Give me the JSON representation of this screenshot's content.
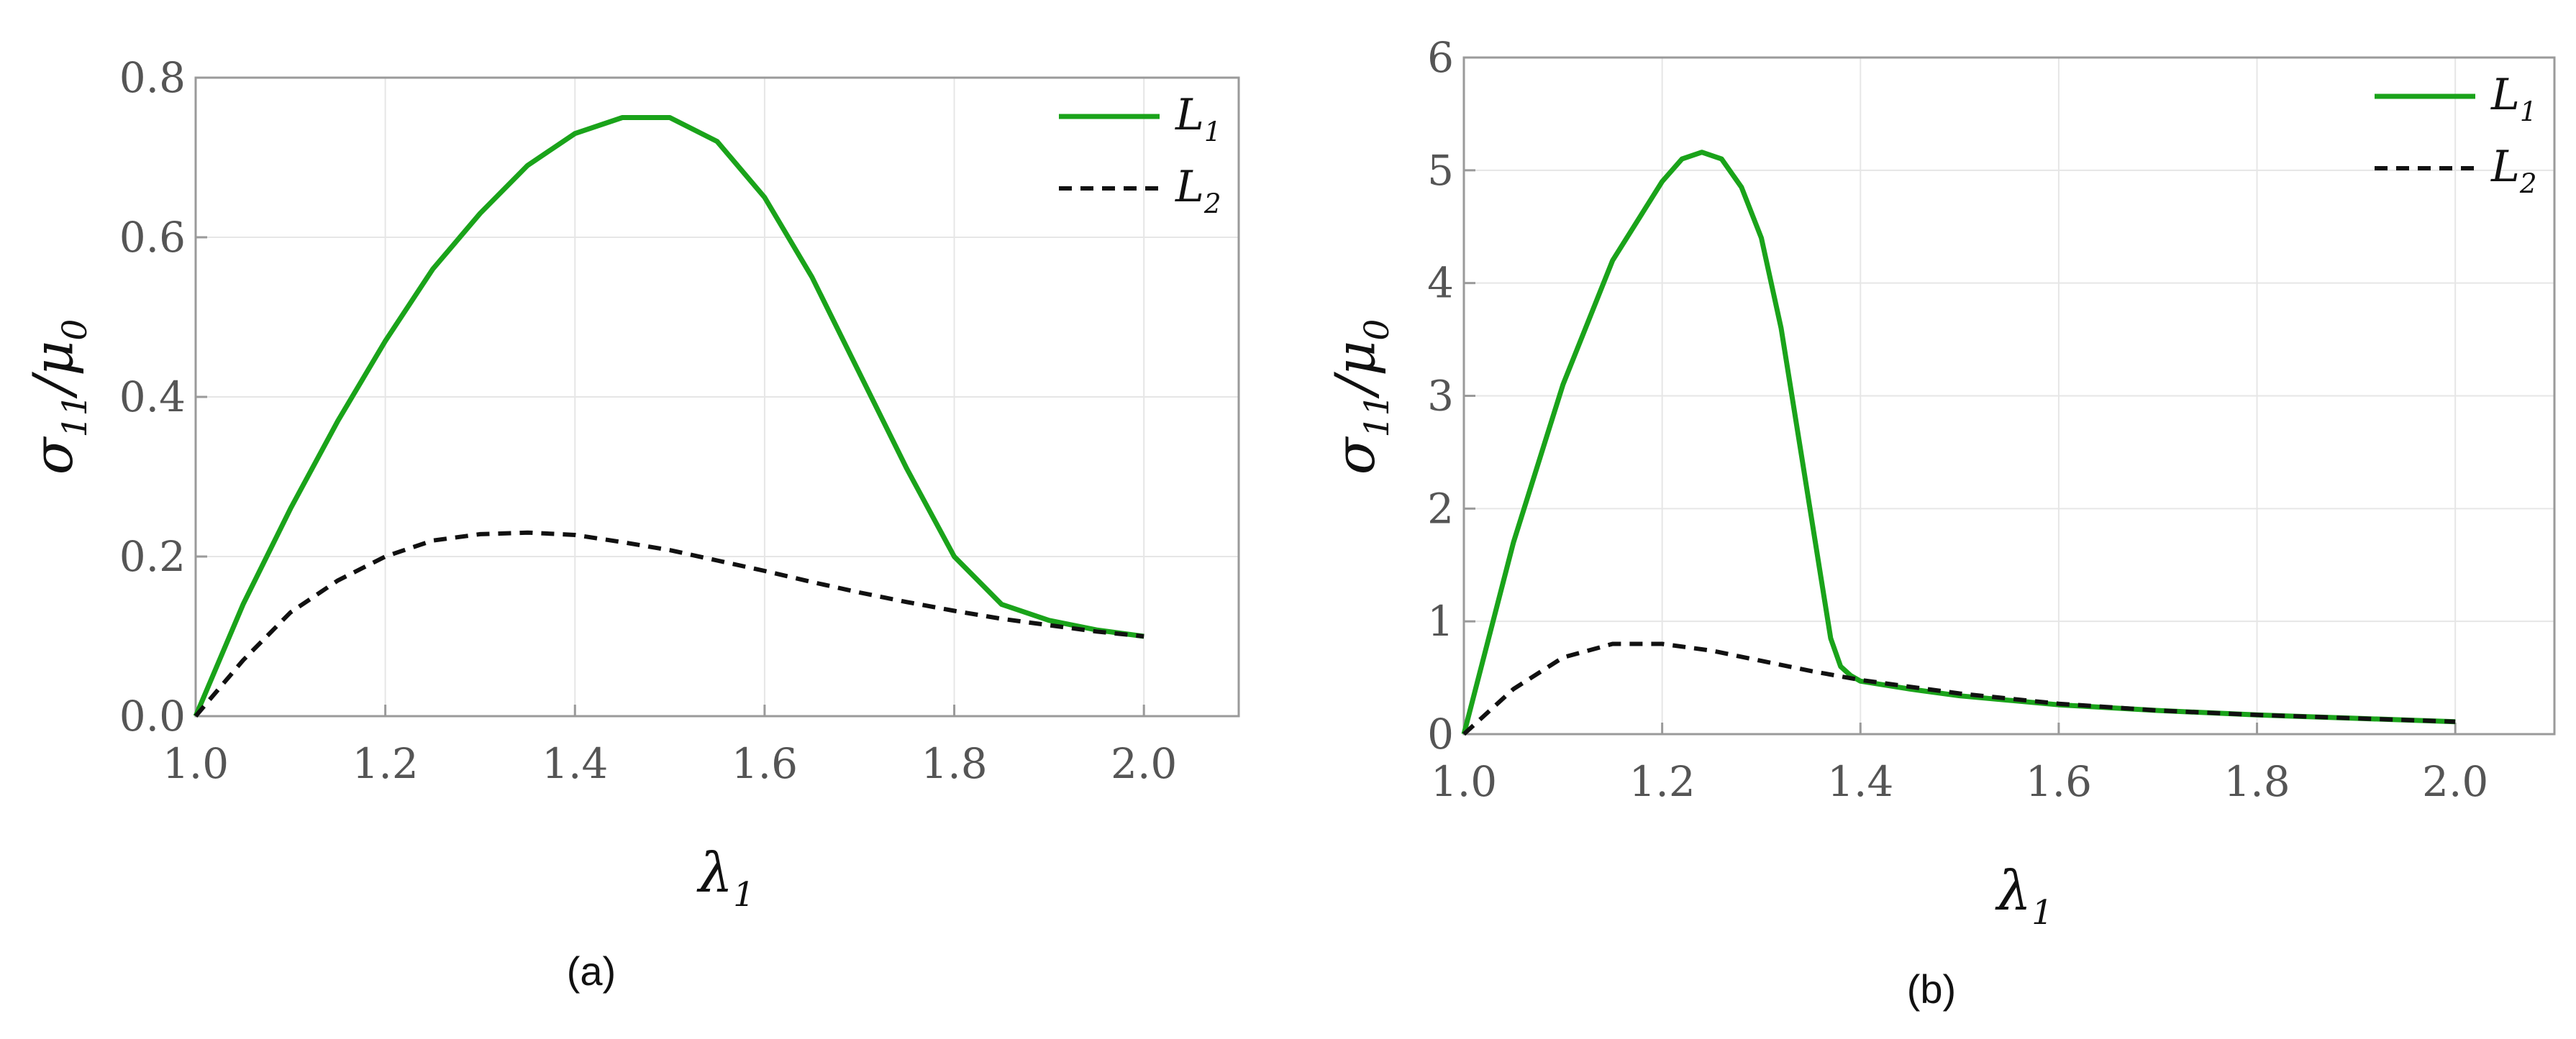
{
  "chart_data": [
    {
      "type": "line",
      "caption": "(a)",
      "xlabel": "λ",
      "xlabel_sub": "1",
      "ylabel": "σ",
      "ylabel_sub": "11",
      "ylabel_tail": "/μ",
      "ylabel_tail_sub": "0",
      "xlim": [
        1.0,
        2.1
      ],
      "ylim": [
        0.0,
        0.8
      ],
      "xticks": [
        "1.0",
        "1.2",
        "1.4",
        "1.6",
        "1.8",
        "2.0"
      ],
      "yticks": [
        "0.0",
        "0.2",
        "0.4",
        "0.6",
        "0.8"
      ],
      "grid": true,
      "legend_position": "top-right",
      "series": [
        {
          "name": "L",
          "name_sub": "1",
          "color": "#1aa31a",
          "style": "solid",
          "x": [
            1.0,
            1.05,
            1.1,
            1.15,
            1.2,
            1.25,
            1.3,
            1.35,
            1.4,
            1.45,
            1.5,
            1.55,
            1.6,
            1.65,
            1.7,
            1.75,
            1.8,
            1.85,
            1.9,
            1.95,
            2.0
          ],
          "y": [
            0.0,
            0.14,
            0.26,
            0.37,
            0.47,
            0.56,
            0.63,
            0.69,
            0.73,
            0.75,
            0.75,
            0.72,
            0.65,
            0.55,
            0.43,
            0.31,
            0.2,
            0.14,
            0.12,
            0.108,
            0.1
          ]
        },
        {
          "name": "L",
          "name_sub": "2",
          "color": "#111111",
          "style": "dashed",
          "x": [
            1.0,
            1.05,
            1.1,
            1.15,
            1.2,
            1.25,
            1.3,
            1.35,
            1.4,
            1.45,
            1.5,
            1.55,
            1.6,
            1.65,
            1.7,
            1.75,
            1.8,
            1.85,
            1.9,
            1.95,
            2.0
          ],
          "y": [
            0.0,
            0.07,
            0.13,
            0.17,
            0.2,
            0.22,
            0.228,
            0.23,
            0.227,
            0.218,
            0.208,
            0.195,
            0.182,
            0.168,
            0.155,
            0.143,
            0.132,
            0.122,
            0.114,
            0.106,
            0.1
          ]
        }
      ]
    },
    {
      "type": "line",
      "caption": "(b)",
      "xlabel": "λ",
      "xlabel_sub": "1",
      "ylabel": "σ",
      "ylabel_sub": "11",
      "ylabel_tail": "/μ",
      "ylabel_tail_sub": "0",
      "xlim": [
        1.0,
        2.1
      ],
      "ylim": [
        0,
        6
      ],
      "xticks": [
        "1.0",
        "1.2",
        "1.4",
        "1.6",
        "1.8",
        "2.0"
      ],
      "yticks": [
        "0",
        "1",
        "2",
        "3",
        "4",
        "5",
        "6"
      ],
      "grid": true,
      "legend_position": "top-right",
      "series": [
        {
          "name": "L",
          "name_sub": "1",
          "color": "#1aa31a",
          "style": "solid",
          "x": [
            1.0,
            1.05,
            1.1,
            1.15,
            1.2,
            1.22,
            1.24,
            1.26,
            1.28,
            1.3,
            1.32,
            1.34,
            1.36,
            1.37,
            1.38,
            1.39,
            1.4,
            1.45,
            1.5,
            1.6,
            1.7,
            1.8,
            1.9,
            2.0
          ],
          "y": [
            0.0,
            1.7,
            3.1,
            4.2,
            4.9,
            5.1,
            5.16,
            5.1,
            4.85,
            4.4,
            3.6,
            2.5,
            1.4,
            0.85,
            0.6,
            0.52,
            0.47,
            0.4,
            0.34,
            0.26,
            0.21,
            0.17,
            0.14,
            0.11
          ]
        },
        {
          "name": "L",
          "name_sub": "2",
          "color": "#111111",
          "style": "dashed",
          "x": [
            1.0,
            1.05,
            1.1,
            1.15,
            1.2,
            1.25,
            1.3,
            1.35,
            1.4,
            1.5,
            1.6,
            1.7,
            1.8,
            1.9,
            2.0
          ],
          "y": [
            0.0,
            0.4,
            0.68,
            0.8,
            0.8,
            0.74,
            0.65,
            0.56,
            0.48,
            0.36,
            0.27,
            0.21,
            0.17,
            0.14,
            0.11
          ]
        }
      ]
    }
  ]
}
